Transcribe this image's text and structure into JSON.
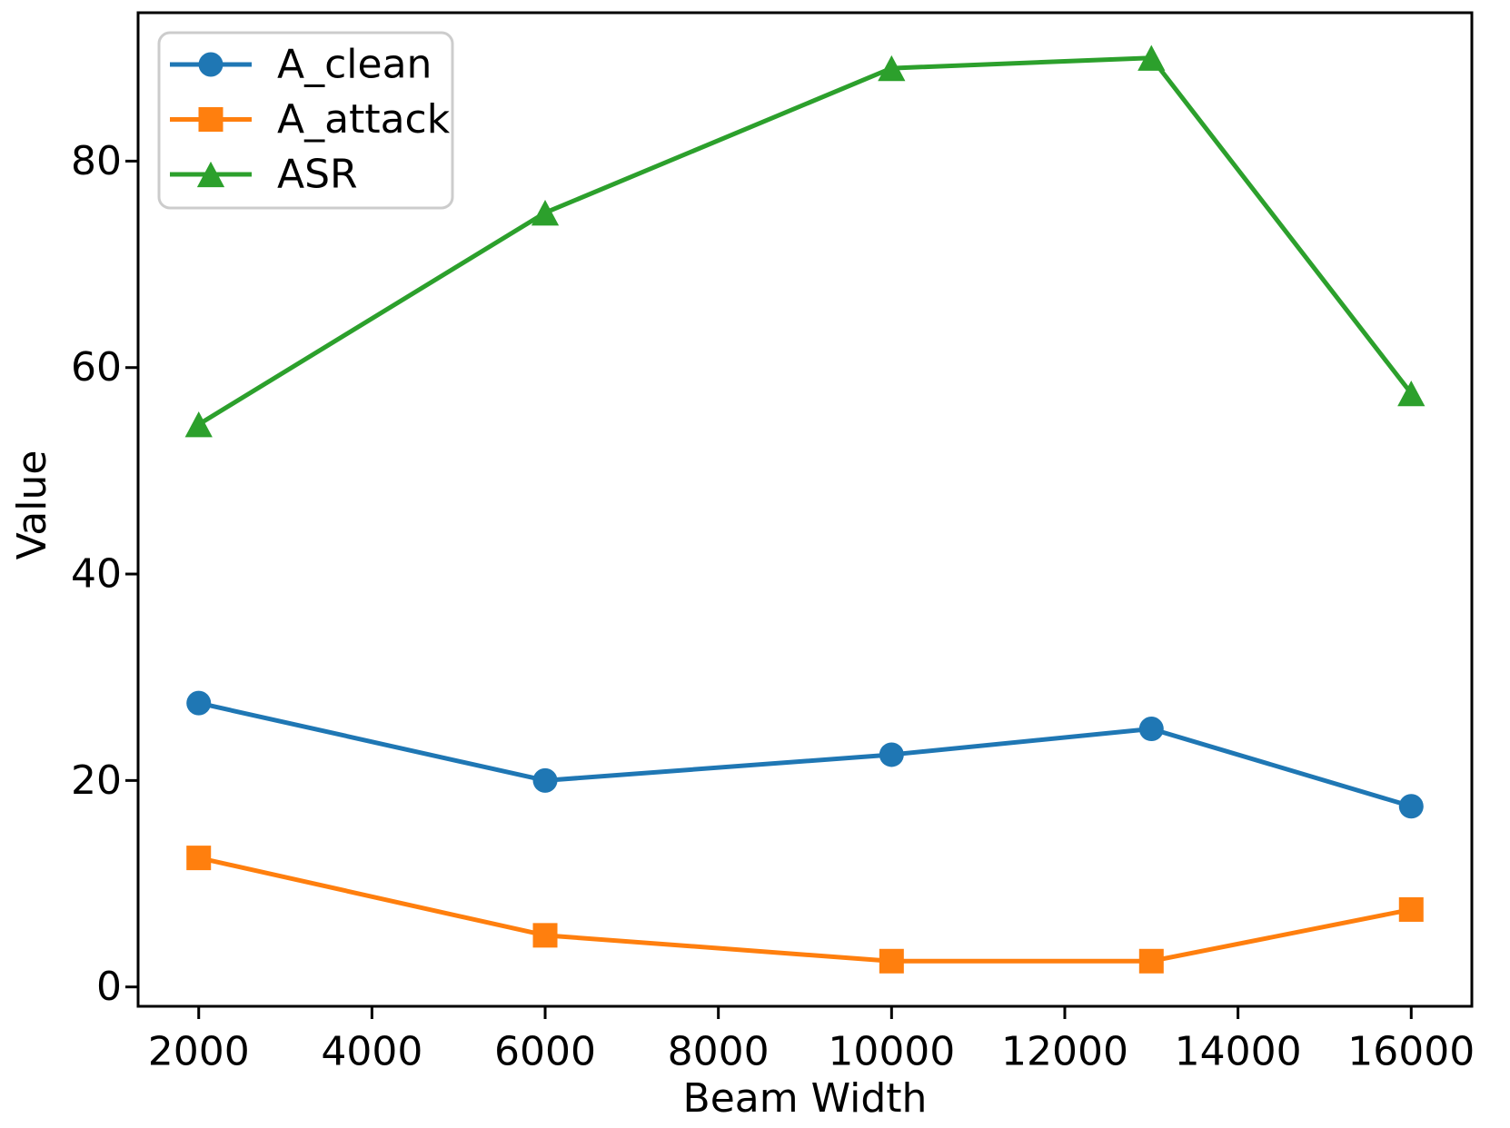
{
  "chart_data": {
    "type": "line",
    "xlabel": "Beam Width",
    "ylabel": "Value",
    "x": [
      2000,
      6000,
      10000,
      13000,
      16000
    ],
    "series": [
      {
        "name": "A_clean",
        "color": "#1f77b4",
        "marker": "circle",
        "values": [
          27.5,
          20.0,
          22.5,
          25.0,
          17.5
        ]
      },
      {
        "name": "A_attack",
        "color": "#ff7f0e",
        "marker": "square",
        "values": [
          12.5,
          5.0,
          2.5,
          2.5,
          7.5
        ]
      },
      {
        "name": "ASR",
        "color": "#2ca02c",
        "marker": "triangle",
        "values": [
          54.5,
          75.0,
          89.0,
          90.0,
          57.5
        ]
      }
    ],
    "x_ticks": [
      2000,
      4000,
      6000,
      8000,
      10000,
      12000,
      14000,
      16000
    ],
    "y_ticks": [
      0,
      20,
      40,
      60,
      80
    ],
    "xlim": [
      1300,
      16700
    ],
    "ylim": [
      -1.875,
      94.375
    ],
    "legend_position": "upper left",
    "grid": false,
    "axis_color": "#000000",
    "legend_border_color": "#cccccc"
  }
}
